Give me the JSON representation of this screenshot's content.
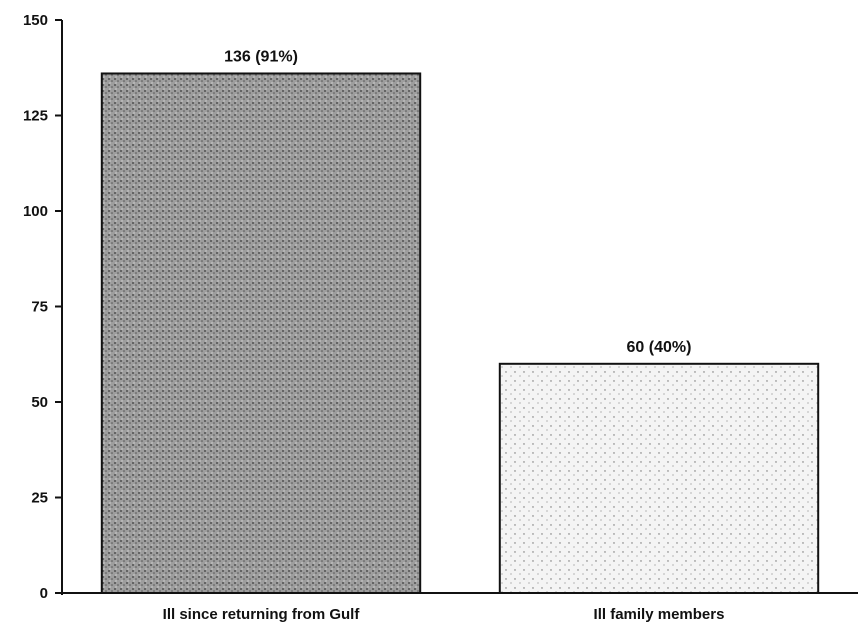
{
  "chart_data": {
    "type": "bar",
    "title": "",
    "xlabel": "",
    "ylabel": "",
    "categories": [
      "Ill since returning from Gulf",
      "Ill family members"
    ],
    "values": [
      136,
      60
    ],
    "data_labels": [
      "136 (91%)",
      "60 (40%)"
    ],
    "ylim": [
      0,
      150
    ],
    "yticks": [
      0,
      25,
      50,
      75,
      100,
      125,
      150
    ],
    "ytick_labels": [
      "0",
      "25",
      "50",
      "75",
      "100",
      "125",
      "150"
    ],
    "grid": false,
    "legend": "none",
    "colors": {
      "axis": "#111111",
      "bar_fill": [
        "#a9a9a9",
        "#ececec"
      ],
      "bar_stroke": "#111111",
      "background": "#ffffff"
    }
  }
}
